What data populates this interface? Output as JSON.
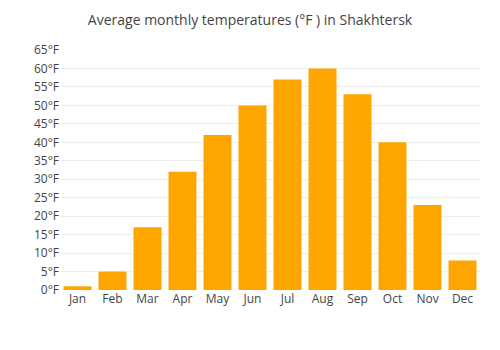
{
  "chart_data": {
    "type": "bar",
    "title": "Average monthly temperatures (°F ) in Shakhtersk",
    "categories": [
      "Jan",
      "Feb",
      "Mar",
      "Apr",
      "May",
      "Jun",
      "Jul",
      "Aug",
      "Sep",
      "Oct",
      "Nov",
      "Dec"
    ],
    "values": [
      1,
      5,
      17,
      32,
      42,
      50,
      57,
      60,
      53,
      40,
      23,
      8
    ],
    "color": "#FFA500",
    "ylim": [
      0,
      65
    ],
    "yticks": [
      {
        "value": 0,
        "label": "0°F"
      },
      {
        "value": 5,
        "label": "5°F"
      },
      {
        "value": 10,
        "label": "10°F"
      },
      {
        "value": 15,
        "label": "15°F"
      },
      {
        "value": 20,
        "label": "20°F"
      },
      {
        "value": 25,
        "label": "25°F"
      },
      {
        "value": 30,
        "label": "30°F"
      },
      {
        "value": 35,
        "label": "35°F"
      },
      {
        "value": 40,
        "label": "40°F"
      },
      {
        "value": 45,
        "label": "45°F"
      },
      {
        "value": 50,
        "label": "50°F"
      },
      {
        "value": 55,
        "label": "55°F"
      },
      {
        "value": 60,
        "label": "60°F"
      },
      {
        "value": 65,
        "label": "65°F"
      }
    ],
    "grid": true
  }
}
